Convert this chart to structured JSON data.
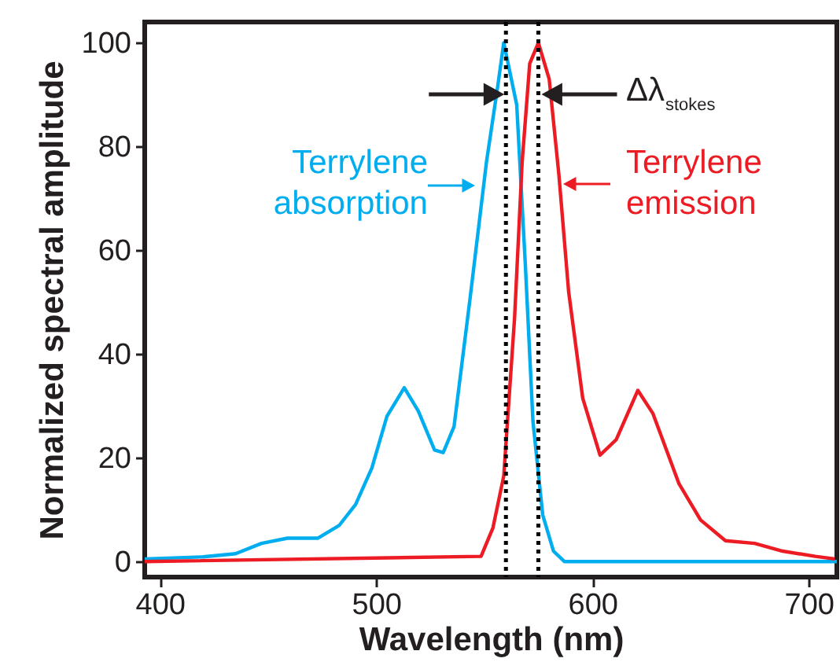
{
  "chart_data": {
    "type": "line",
    "xlabel": "Wavelength (nm)",
    "ylabel": "Normalized spectral amplitude",
    "xlim": [
      393,
      713
    ],
    "ylim": [
      -3,
      104
    ],
    "xticks": [
      400,
      500,
      600,
      700
    ],
    "yticks": [
      0,
      20,
      40,
      60,
      80,
      100
    ],
    "grid": false,
    "marker": "none",
    "line_style": "solid",
    "series": [
      {
        "color": "#00aeef",
        "x": [
          393,
          420,
          435,
          447,
          459,
          473,
          483,
          490.5,
          498,
          505,
          513,
          519.5,
          527,
          531,
          536,
          543.5,
          551,
          556,
          559,
          565,
          569,
          572.5,
          577,
          582,
          587,
          713
        ],
        "values": [
          0.5,
          0.9,
          1.5,
          3.5,
          4.5,
          4.5,
          7,
          11,
          18,
          28,
          33.5,
          29,
          21.5,
          21,
          26,
          51,
          77,
          91,
          100,
          88,
          57,
          27,
          9,
          2,
          0,
          0
        ]
      },
      {
        "color": "#ed1c24",
        "x": [
          393,
          548.5,
          554,
          559,
          564,
          567.5,
          571,
          575,
          580,
          584.5,
          589,
          595.5,
          603.5,
          611,
          621,
          628,
          640,
          650,
          661.5,
          675,
          688,
          703,
          712
        ],
        "values": [
          0,
          1,
          6.5,
          16.5,
          47,
          77,
          96,
          100,
          93,
          74.5,
          52,
          31.5,
          20.5,
          23.5,
          33,
          28.5,
          15,
          8,
          4,
          3.5,
          2,
          1,
          0.5
        ]
      }
    ],
    "ref_lines": [
      {
        "axis": "x",
        "value": 560,
        "color": "#000000",
        "line_style": "dotted"
      },
      {
        "axis": "x",
        "value": 575,
        "color": "#000000",
        "line_style": "dotted"
      }
    ],
    "annotations": [
      "Terrylene absorption",
      "Terrylene emission",
      "Δλ$_{stokes}$"
    ]
  }
}
